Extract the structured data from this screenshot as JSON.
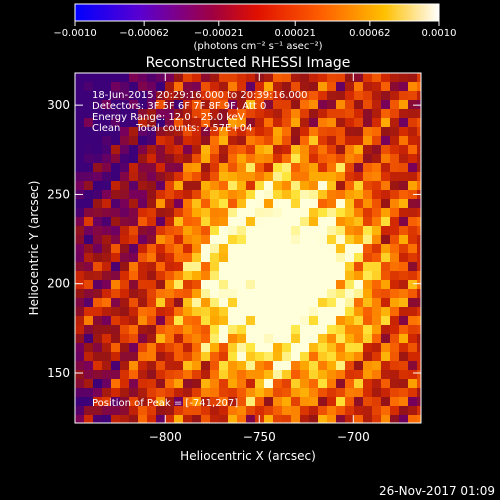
{
  "chart_data": {
    "type": "heatmap",
    "title": "Reconstructed RHESSI Image",
    "xlabel": "Heliocentric X (arcsec)",
    "ylabel": "Heliocentric Y (arcsec)",
    "xlim": [
      -848,
      -664
    ],
    "ylim": [
      122,
      318
    ],
    "x_ticks": [
      {
        "v": -800,
        "label": "−800"
      },
      {
        "v": -750,
        "label": "−750"
      },
      {
        "v": -700,
        "label": "−700"
      }
    ],
    "y_ticks": [
      {
        "v": 150,
        "label": "150"
      },
      {
        "v": 200,
        "label": "200"
      },
      {
        "v": 250,
        "label": "250"
      },
      {
        "v": 300,
        "label": "300"
      }
    ],
    "colorbar": {
      "range": [
        -0.001,
        0.001
      ],
      "ticks": [
        {
          "v": -0.001,
          "label": "−0.0010"
        },
        {
          "v": -0.00062,
          "label": "−0.00062"
        },
        {
          "v": -0.00021,
          "label": "−0.00021"
        },
        {
          "v": 0.00021,
          "label": "0.00021"
        },
        {
          "v": 0.00062,
          "label": "0.00062"
        },
        {
          "v": 0.001,
          "label": "0.0010"
        }
      ],
      "units": "(photons cm⁻² s⁻¹ asec⁻²)",
      "colors": [
        "#0000ff",
        "#6a00c8",
        "#b00030",
        "#ff2000",
        "#ff9000",
        "#ffffff"
      ]
    },
    "peak": {
      "x": -741,
      "y": 207
    },
    "annotations": [
      "18-Jun-2015 20:29:16.000 to 20:39:16.000",
      "Detectors: 3F 5F 6F 7F 8F 9F, Att 0",
      "Energy Range: 12.0 - 25.0 keV",
      "Clean     Total counts: 2.57E+04"
    ],
    "peak_label": "Position of Peak = [-741,207]"
  },
  "footer_date": "26-Nov-2017 01:09"
}
